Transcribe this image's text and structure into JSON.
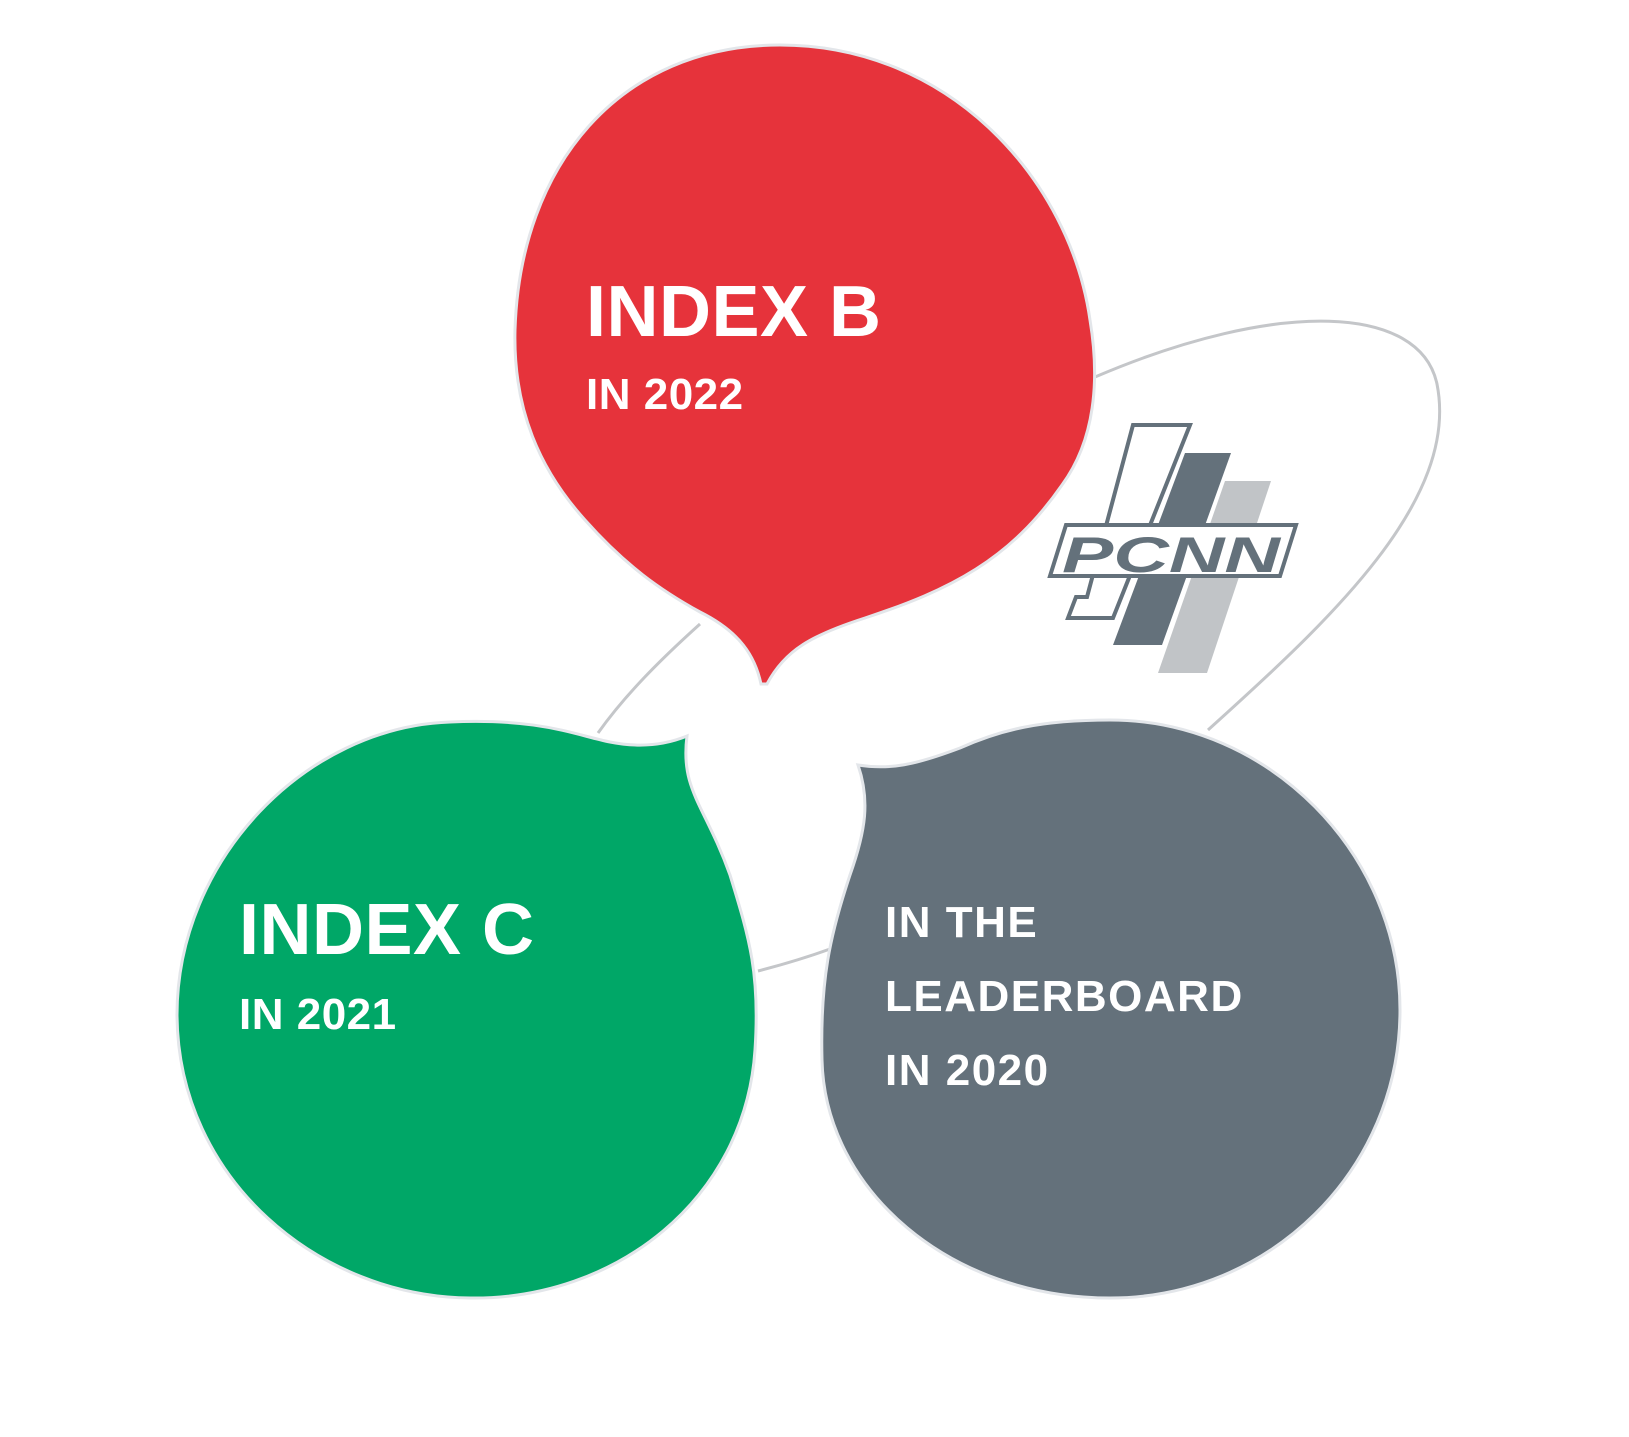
{
  "bubbles": {
    "red": {
      "title": "INDEX B",
      "subtitle": "IN 2022",
      "color": "#e6333b"
    },
    "green": {
      "title": "INDEX C",
      "subtitle": "IN 2021",
      "color": "#00a767"
    },
    "gray": {
      "lines": [
        "IN THE",
        "LEADERBOARD",
        "IN 2020"
      ],
      "color": "#64717b"
    }
  },
  "logo": {
    "text": "PCNN",
    "icon": "rspp-logo-icon",
    "colors": {
      "dark": "#64717b",
      "light": "#c1c4c7"
    }
  },
  "colors": {
    "orbit": "#c4c6c9",
    "bubble_outline": "#e3e6ea"
  }
}
